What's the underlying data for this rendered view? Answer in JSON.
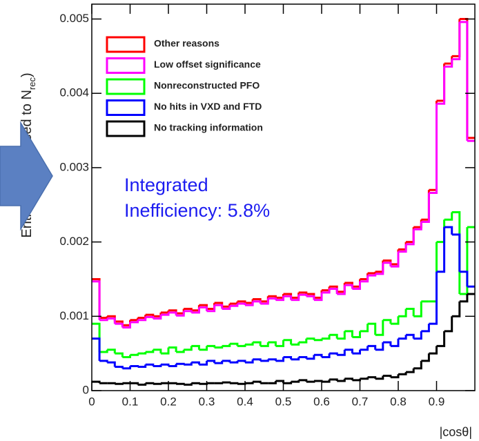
{
  "chart_data": {
    "type": "histogram",
    "ylabel": [
      "Entries (normalised to N",
      "rec",
      ")"
    ],
    "xlabel": "|cosθ|",
    "annotation": [
      "Integrated",
      "Inefficiency: 5.8%"
    ],
    "annotation_color": "#1c1cf0",
    "xlim": [
      0,
      1
    ],
    "ylim": [
      0,
      0.0052
    ],
    "xticks": [
      0,
      0.1,
      0.2,
      0.3,
      0.4,
      0.5,
      0.6,
      0.7,
      0.8,
      0.9
    ],
    "yticks": [
      0,
      0.001,
      0.002,
      0.003,
      0.004,
      0.005
    ],
    "legend": "upper left",
    "bins": [
      0,
      0.02,
      0.04,
      0.06,
      0.08,
      0.1,
      0.12,
      0.14,
      0.16,
      0.18,
      0.2,
      0.22,
      0.24,
      0.26,
      0.28,
      0.3,
      0.32,
      0.34,
      0.36,
      0.38,
      0.4,
      0.42,
      0.44,
      0.46,
      0.48,
      0.5,
      0.52,
      0.54,
      0.56,
      0.58,
      0.6,
      0.62,
      0.64,
      0.66,
      0.68,
      0.7,
      0.72,
      0.74,
      0.76,
      0.78,
      0.8,
      0.82,
      0.84,
      0.86,
      0.88,
      0.9,
      0.92,
      0.94,
      0.96,
      0.98,
      1
    ],
    "series": [
      {
        "name": "Other reasons",
        "color": "#ff0000",
        "values": [
          0.0015,
          0.00098,
          0.001,
          0.00093,
          0.00088,
          0.00095,
          0.00098,
          0.00102,
          0.001,
          0.00105,
          0.00108,
          0.00104,
          0.0011,
          0.00108,
          0.00115,
          0.0011,
          0.00118,
          0.00113,
          0.00117,
          0.0012,
          0.00118,
          0.00123,
          0.0012,
          0.00127,
          0.00125,
          0.0013,
          0.00125,
          0.00132,
          0.0013,
          0.00125,
          0.00135,
          0.0014,
          0.00133,
          0.00145,
          0.0014,
          0.0015,
          0.00158,
          0.0016,
          0.00175,
          0.0017,
          0.0019,
          0.002,
          0.0022,
          0.0023,
          0.0027,
          0.0039,
          0.0044,
          0.0045,
          0.005,
          0.0034
        ]
      },
      {
        "name": "Low offset significance",
        "color": "#ff00ff",
        "values": [
          0.00147,
          0.00095,
          0.00097,
          0.0009,
          0.00085,
          0.00092,
          0.00095,
          0.00099,
          0.00097,
          0.00102,
          0.00105,
          0.00101,
          0.00107,
          0.00105,
          0.00112,
          0.00107,
          0.00115,
          0.0011,
          0.00114,
          0.00117,
          0.00115,
          0.0012,
          0.00117,
          0.00124,
          0.00122,
          0.00127,
          0.00122,
          0.00129,
          0.00127,
          0.00122,
          0.00132,
          0.00137,
          0.0013,
          0.00142,
          0.00137,
          0.00147,
          0.00155,
          0.00157,
          0.00172,
          0.00167,
          0.00187,
          0.00197,
          0.00217,
          0.00227,
          0.00266,
          0.00386,
          0.00436,
          0.00446,
          0.00496,
          0.00336
        ]
      },
      {
        "name": "Nonreconstructed PFO",
        "color": "#00ff00",
        "values": [
          0.0009,
          0.00052,
          0.00055,
          0.0005,
          0.00045,
          0.00048,
          0.0005,
          0.00052,
          0.00055,
          0.0005,
          0.00058,
          0.00052,
          0.00055,
          0.0006,
          0.00055,
          0.0006,
          0.00058,
          0.0006,
          0.00063,
          0.0006,
          0.00062,
          0.00065,
          0.0006,
          0.00065,
          0.0006,
          0.00068,
          0.00062,
          0.00065,
          0.0007,
          0.00068,
          0.0007,
          0.00075,
          0.0007,
          0.0008,
          0.00072,
          0.0008,
          0.0009,
          0.00075,
          0.00095,
          0.0009,
          0.001,
          0.0011,
          0.001,
          0.0012,
          0.0012,
          0.002,
          0.0023,
          0.0024,
          0.0013,
          0.0022
        ]
      },
      {
        "name": "No hits in VXD and FTD",
        "color": "#0000ff",
        "values": [
          0.0007,
          0.0004,
          0.00038,
          0.00032,
          0.0003,
          0.00033,
          0.00032,
          0.00035,
          0.00033,
          0.00035,
          0.00033,
          0.00036,
          0.00035,
          0.00038,
          0.00035,
          0.0004,
          0.00037,
          0.0004,
          0.00038,
          0.0004,
          0.00038,
          0.00042,
          0.0004,
          0.00042,
          0.0004,
          0.00045,
          0.00042,
          0.00045,
          0.00043,
          0.00048,
          0.00045,
          0.0005,
          0.00048,
          0.00055,
          0.0005,
          0.00055,
          0.0006,
          0.00055,
          0.00065,
          0.0006,
          0.0007,
          0.00075,
          0.0007,
          0.0008,
          0.0009,
          0.0016,
          0.0022,
          0.0021,
          0.0016,
          0.0014
        ]
      },
      {
        "name": "No tracking information",
        "color": "#000000",
        "values": [
          0.00012,
          0.0001,
          0.0001,
          9e-05,
          0.0001,
          0.0001,
          8e-05,
          0.0001,
          9e-05,
          0.0001,
          0.0001,
          9e-05,
          8e-05,
          0.0001,
          9e-05,
          0.0001,
          0.0001,
          0.00011,
          0.0001,
          9e-05,
          0.0001,
          0.00012,
          0.0001,
          0.0001,
          0.00013,
          0.0001,
          0.00012,
          0.00014,
          0.00012,
          0.00013,
          0.00012,
          0.00015,
          0.00013,
          0.00016,
          0.00014,
          0.00016,
          0.00018,
          0.00016,
          0.0002,
          0.00018,
          0.00022,
          0.00025,
          0.0003,
          0.0004,
          0.0005,
          0.0006,
          0.0008,
          0.001,
          0.0012,
          0.0013
        ]
      }
    ]
  }
}
